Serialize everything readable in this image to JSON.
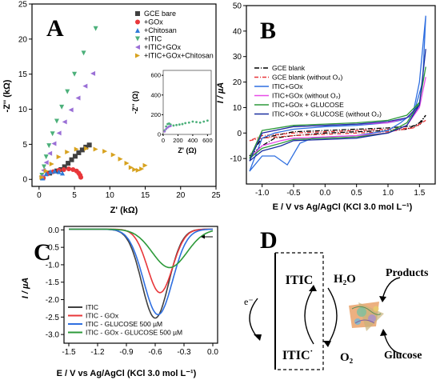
{
  "panels": {
    "A": "A",
    "B": "B",
    "C": "C",
    "D": "D"
  },
  "chart_data": [
    {
      "id": "A",
      "type": "scatter",
      "xlabel": "Z' (kΩ)",
      "ylabel": "-Z'' (kΩ)",
      "xlim": [
        -1,
        25
      ],
      "ylim": [
        -1,
        25
      ],
      "xticks": [
        0,
        5,
        10,
        15,
        20,
        25
      ],
      "yticks": [
        0,
        5,
        10,
        15,
        20,
        25
      ],
      "series": [
        {
          "name": "GCE bare",
          "color": "#404040",
          "marker": "square",
          "x": [
            0.5,
            1.5,
            2.5,
            3.1,
            3.6,
            4.1,
            4.6,
            5.1,
            5.6,
            6.1,
            6.6,
            7.1
          ],
          "y": [
            0.2,
            0.9,
            1.2,
            1.4,
            1.8,
            2.3,
            2.8,
            3.3,
            3.8,
            4.2,
            4.6,
            4.9
          ]
        },
        {
          "name": "+GOx",
          "color": "#e8373a",
          "marker": "circle",
          "x": [
            0.6,
            1.2,
            2.0,
            2.8,
            3.5,
            4.2,
            4.8,
            5.3,
            5.6,
            5.8,
            5.9
          ],
          "y": [
            0.2,
            0.8,
            1.1,
            1.3,
            1.4,
            1.5,
            1.4,
            1.2,
            0.9,
            0.6,
            0.3
          ]
        },
        {
          "name": "+Chitosan",
          "color": "#2f7bd8",
          "marker": "triangle-up",
          "x": [
            0.5,
            1.0,
            1.6,
            2.2,
            2.8,
            3.3
          ],
          "y": [
            0.2,
            0.8,
            1.1,
            1.2,
            1.1,
            0.9
          ]
        },
        {
          "name": "+ITIC",
          "color": "#4cb07a",
          "marker": "triangle-down",
          "x": [
            0.4,
            0.7,
            1.0,
            1.4,
            1.9,
            2.5,
            3.2,
            4.0,
            5.0,
            6.3,
            8.0
          ],
          "y": [
            0.6,
            1.8,
            3.2,
            4.8,
            6.5,
            8.3,
            10.3,
            12.5,
            15.0,
            18.0,
            21.5
          ]
        },
        {
          "name": "+ITIC+GOx",
          "color": "#9a6fd6",
          "marker": "triangle-left",
          "x": [
            0.3,
            0.6,
            1.0,
            1.5,
            2.1,
            2.8,
            3.6,
            4.5,
            5.5,
            6.5,
            7.6
          ],
          "y": [
            0.4,
            1.3,
            2.4,
            3.7,
            5.1,
            6.6,
            8.2,
            9.9,
            11.6,
            13.3,
            15.1
          ]
        },
        {
          "name": "+ITIC+GOx+Chitosan",
          "color": "#d7a21f",
          "marker": "triangle-right",
          "x": [
            0.4,
            1.0,
            1.8,
            2.8,
            4.0,
            5.3,
            6.7,
            8.0,
            9.3,
            10.5,
            11.5,
            12.4,
            13.0,
            13.5,
            14.0,
            14.5,
            15.0
          ],
          "y": [
            0.3,
            1.2,
            2.2,
            3.2,
            3.9,
            4.3,
            4.4,
            4.3,
            4.0,
            3.5,
            2.9,
            2.3,
            1.7,
            1.4,
            1.3,
            1.5,
            2.0
          ]
        }
      ],
      "inset": {
        "xlabel": "Z' (Ω)",
        "ylabel": "-Z'' (Ω)",
        "xlim": [
          0,
          650
        ],
        "ylim": [
          0,
          650
        ],
        "xticks": [
          0,
          200,
          400,
          600
        ],
        "yticks": [
          0,
          200,
          400,
          600
        ],
        "series": [
          {
            "name": "+ITIC",
            "color": "#4cb07a",
            "x": [
              20,
              40,
              60,
              80,
              100,
              140,
              180,
              220,
              260,
              300,
              350,
              400,
              450,
              500,
              550,
              600
            ],
            "y": [
              40,
              80,
              105,
              110,
              100,
              90,
              95,
              100,
              105,
              115,
              120,
              130,
              125,
              120,
              130,
              140
            ]
          },
          {
            "name": "+ITIC+GOx",
            "color": "#9a6fd6",
            "x": [
              20,
              40,
              60,
              80,
              100
            ],
            "y": [
              30,
              55,
              70,
              80,
              85
            ]
          }
        ]
      }
    },
    {
      "id": "B",
      "type": "line",
      "xlabel": "E / V vs Ag/AgCl (KCl 3.0 mol L⁻¹)",
      "ylabel": "I / µA",
      "xlim": [
        -1.25,
        1.75
      ],
      "ylim": [
        -20,
        50
      ],
      "xticks": [
        -1.0,
        -0.5,
        0.0,
        0.5,
        1.0,
        1.5
      ],
      "yticks": [
        -10,
        0,
        10,
        20,
        30,
        40,
        50
      ],
      "series": [
        {
          "name": "GCE blank",
          "color": "#000000",
          "dash": "6,2,1,2",
          "fwd": [
            [
              -1.2,
              -9
            ],
            [
              -1.0,
              -5
            ],
            [
              -0.8,
              -2
            ],
            [
              -0.5,
              -1
            ],
            [
              0.0,
              0
            ],
            [
              0.5,
              0.5
            ],
            [
              1.0,
              1
            ],
            [
              1.3,
              1.5
            ],
            [
              1.5,
              4
            ],
            [
              1.6,
              7
            ]
          ],
          "rev": [
            [
              1.6,
              7
            ],
            [
              1.5,
              3
            ],
            [
              1.0,
              2
            ],
            [
              0.5,
              1.5
            ],
            [
              0.0,
              1
            ],
            [
              -0.5,
              0.5
            ],
            [
              -1.0,
              -2
            ],
            [
              -1.2,
              -9
            ]
          ]
        },
        {
          "name": "GCE blank (without O₂)",
          "color": "#e8373a",
          "dash": "5,2,1,2",
          "fwd": [
            [
              -1.2,
              -3
            ],
            [
              -1.0,
              -2
            ],
            [
              -0.5,
              -1
            ],
            [
              0.0,
              -0.5
            ],
            [
              0.5,
              0
            ],
            [
              1.0,
              0.5
            ],
            [
              1.4,
              2
            ],
            [
              1.6,
              5
            ]
          ],
          "rev": [
            [
              1.6,
              5
            ],
            [
              1.4,
              2
            ],
            [
              1.0,
              1.5
            ],
            [
              0.5,
              1
            ],
            [
              0.0,
              0.5
            ],
            [
              -0.5,
              0
            ],
            [
              -1.0,
              -1
            ],
            [
              -1.2,
              -3
            ]
          ]
        },
        {
          "name": "ITIC+GOx",
          "color": "#2f6fe0",
          "dash": "",
          "fwd": [
            [
              -1.2,
              -15
            ],
            [
              -1.0,
              -9
            ],
            [
              -0.8,
              -9
            ],
            [
              -0.6,
              -12.5
            ],
            [
              -0.4,
              -4
            ],
            [
              -0.2,
              -2
            ],
            [
              0.0,
              -1.5
            ],
            [
              0.5,
              -1
            ],
            [
              1.0,
              1
            ],
            [
              1.2,
              4
            ],
            [
              1.4,
              8
            ],
            [
              1.5,
              20
            ],
            [
              1.6,
              46
            ]
          ],
          "rev": [
            [
              1.6,
              46
            ],
            [
              1.55,
              20
            ],
            [
              1.4,
              7
            ],
            [
              1.2,
              5
            ],
            [
              1.0,
              4
            ],
            [
              0.5,
              3
            ],
            [
              0.0,
              2.5
            ],
            [
              -0.5,
              1.5
            ],
            [
              -0.8,
              0
            ],
            [
              -1.0,
              -2
            ],
            [
              -1.2,
              -15
            ]
          ]
        },
        {
          "name": "ITIC+GOx (without O₂)",
          "color": "#e84ce8",
          "dash": "",
          "fwd": [
            [
              -1.2,
              -10
            ],
            [
              -1.0,
              -5
            ],
            [
              -0.7,
              -3
            ],
            [
              -0.5,
              -2
            ],
            [
              0.0,
              -1.5
            ],
            [
              0.5,
              -1
            ],
            [
              1.0,
              0
            ],
            [
              1.3,
              3
            ],
            [
              1.5,
              10
            ],
            [
              1.6,
              22
            ]
          ],
          "rev": [
            [
              1.6,
              22
            ],
            [
              1.5,
              10
            ],
            [
              1.3,
              6
            ],
            [
              1.0,
              4
            ],
            [
              0.5,
              3.5
            ],
            [
              0.0,
              3
            ],
            [
              -0.5,
              2.5
            ],
            [
              -1.0,
              0
            ],
            [
              -1.2,
              -10
            ]
          ]
        },
        {
          "name": "ITIC+GOx + GLUCOSE",
          "color": "#2d9a3a",
          "dash": "",
          "fwd": [
            [
              -1.2,
              -10
            ],
            [
              -1.0,
              -6
            ],
            [
              -0.7,
              -4
            ],
            [
              -0.5,
              -2.5
            ],
            [
              0.0,
              -2
            ],
            [
              0.5,
              -1.5
            ],
            [
              1.0,
              0
            ],
            [
              1.3,
              4
            ],
            [
              1.5,
              12
            ],
            [
              1.6,
              26
            ]
          ],
          "rev": [
            [
              1.6,
              26
            ],
            [
              1.5,
              12
            ],
            [
              1.3,
              7
            ],
            [
              1.0,
              5
            ],
            [
              0.5,
              4
            ],
            [
              0.0,
              3.5
            ],
            [
              -0.5,
              3
            ],
            [
              -1.0,
              1
            ],
            [
              -1.2,
              -10
            ]
          ]
        },
        {
          "name": "ITIC+GOx + GLUCOSE (without O₂)",
          "color": "#1a2fa0",
          "dash": "",
          "fwd": [
            [
              -1.2,
              -11
            ],
            [
              -1.0,
              -7
            ],
            [
              -0.7,
              -5
            ],
            [
              -0.5,
              -3
            ],
            [
              0.0,
              -2.5
            ],
            [
              0.5,
              -2
            ],
            [
              1.0,
              0
            ],
            [
              1.3,
              3
            ],
            [
              1.5,
              11
            ],
            [
              1.6,
              33
            ]
          ],
          "rev": [
            [
              1.6,
              33
            ],
            [
              1.5,
              11
            ],
            [
              1.3,
              6
            ],
            [
              1.0,
              4.5
            ],
            [
              0.5,
              3.5
            ],
            [
              0.0,
              3
            ],
            [
              -0.5,
              2.5
            ],
            [
              -1.0,
              0
            ],
            [
              -1.2,
              -11
            ]
          ]
        }
      ]
    },
    {
      "id": "C",
      "type": "line",
      "xlabel": "E / V vs Ag/AgCl (KCl 3.0 mol L⁻¹)",
      "ylabel": "I / µA",
      "xlim": [
        -1.55,
        0.05
      ],
      "ylim": [
        -3.25,
        0.1
      ],
      "xticks": [
        -1.5,
        -1.2,
        -0.9,
        -0.6,
        -0.3,
        0.0
      ],
      "yticks": [
        0.0,
        -0.5,
        -1.0,
        -1.5,
        -2.0,
        -2.5,
        -3.0
      ],
      "series": [
        {
          "name": "ITIC",
          "color": "#404040",
          "peak_x": -0.6,
          "peak_y": -2.55,
          "width": 0.14
        },
        {
          "name": "ITIC - GOx",
          "color": "#e8373a",
          "peak_x": -0.55,
          "peak_y": -1.82,
          "width": 0.13
        },
        {
          "name": "ITIC - GLUCOSE 500 µM",
          "color": "#2f6fe0",
          "peak_x": -0.57,
          "peak_y": -2.45,
          "width": 0.15
        },
        {
          "name": "ITIC - GOx - GLUCOSE 500 µM",
          "color": "#2d9a3a",
          "peak_x": -0.45,
          "peak_y": -1.1,
          "width": 0.18
        }
      ]
    }
  ],
  "diagram": {
    "e_minus": "e⁻",
    "itic_top": "ITIC",
    "itic_bottom": "ITIC",
    "itic_bottom_sup": "·",
    "h2o": "H₂O",
    "o2": "O₂",
    "products": "Products",
    "glucose": "Glucose"
  }
}
